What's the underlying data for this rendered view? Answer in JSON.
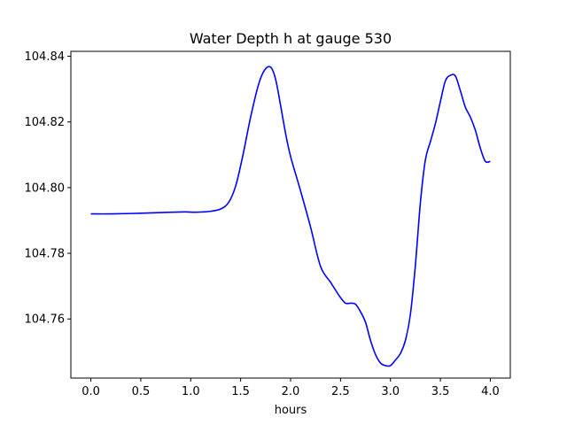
{
  "chart_data": {
    "type": "line",
    "title": "Water Depth h at gauge 530",
    "xlabel": "hours",
    "ylabel": "",
    "xlim": [
      -0.2,
      4.2
    ],
    "ylim": [
      104.742,
      104.8415
    ],
    "xticks": [
      0.0,
      0.5,
      1.0,
      1.5,
      2.0,
      2.5,
      3.0,
      3.5,
      4.0
    ],
    "xtick_labels": [
      "0.0",
      "0.5",
      "1.0",
      "1.5",
      "2.0",
      "2.5",
      "3.0",
      "3.5",
      "4.0"
    ],
    "yticks": [
      104.76,
      104.78,
      104.8,
      104.82,
      104.84
    ],
    "ytick_labels": [
      "104.76",
      "104.78",
      "104.80",
      "104.82",
      "104.84"
    ],
    "grid": false,
    "series": [
      {
        "color": "#0000ff",
        "x": [
          0.0,
          0.2,
          0.5,
          0.8,
          0.95,
          1.05,
          1.2,
          1.3,
          1.38,
          1.45,
          1.52,
          1.6,
          1.68,
          1.74,
          1.8,
          1.85,
          1.9,
          1.95,
          2.0,
          2.1,
          2.2,
          2.3,
          2.4,
          2.45,
          2.5,
          2.55,
          2.6,
          2.65,
          2.7,
          2.75,
          2.8,
          2.85,
          2.9,
          2.95,
          3.0,
          3.05,
          3.1,
          3.15,
          3.2,
          3.25,
          3.3,
          3.35,
          3.4,
          3.45,
          3.5,
          3.55,
          3.6,
          3.65,
          3.7,
          3.75,
          3.8,
          3.85,
          3.9,
          3.95,
          4.0
        ],
        "y": [
          104.792,
          104.792,
          104.7922,
          104.7925,
          104.7926,
          104.7925,
          104.7928,
          104.7935,
          104.7955,
          104.8005,
          104.8095,
          104.8215,
          104.8315,
          104.8358,
          104.8367,
          104.833,
          104.825,
          104.8165,
          104.8095,
          104.799,
          104.788,
          104.776,
          104.7712,
          104.7688,
          104.7665,
          104.7648,
          104.7648,
          104.7645,
          104.7622,
          104.759,
          104.7535,
          104.7492,
          104.7466,
          104.7458,
          104.7458,
          104.7475,
          104.7495,
          104.7535,
          104.7615,
          104.7765,
          104.7955,
          104.8085,
          104.814,
          104.8195,
          104.8262,
          104.8325,
          104.8342,
          104.834,
          104.8295,
          104.8245,
          104.8215,
          104.8175,
          104.812,
          104.808,
          104.808
        ]
      }
    ]
  }
}
